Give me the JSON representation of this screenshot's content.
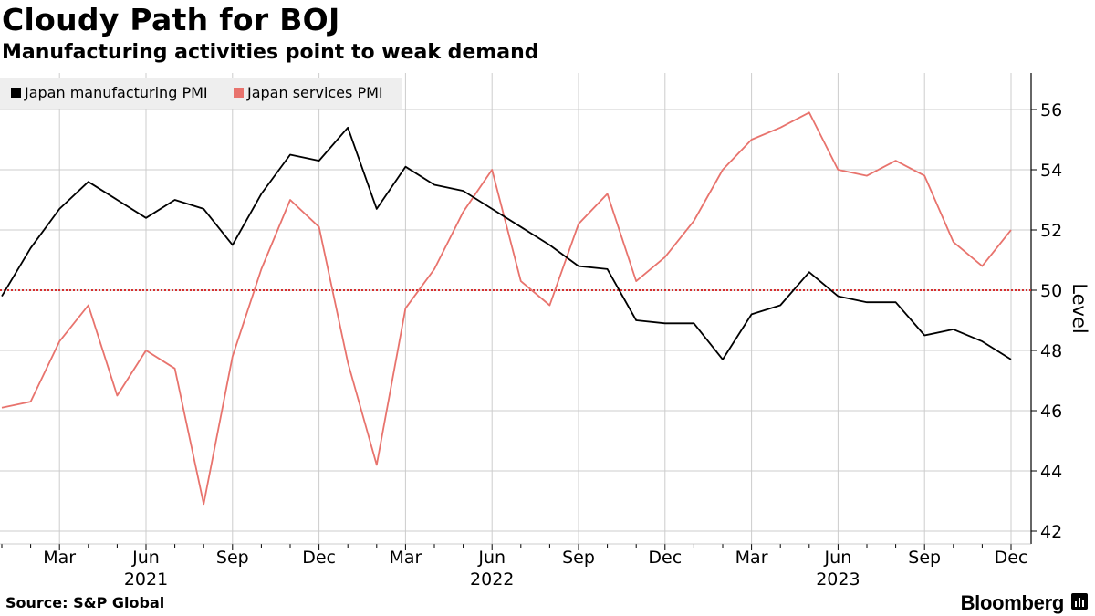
{
  "header": {
    "title": "Cloudy Path for BOJ",
    "subtitle": "Manufacturing activities point to weak demand"
  },
  "footer": {
    "source": "Source: S&P Global",
    "brand": "Bloomberg"
  },
  "colors": {
    "manufacturing": "#000000",
    "services": "#e8736d",
    "reference_line": "#d62f2f",
    "grid": "#cccccc",
    "legend_bg": "#eeeeee"
  },
  "chart_data": {
    "type": "line",
    "ylabel": "Level",
    "ylim": [
      42,
      57
    ],
    "yticks": [
      42,
      44,
      46,
      48,
      50,
      52,
      54,
      56
    ],
    "reference_line": 50,
    "grid": true,
    "legend_position": "top-left",
    "x": [
      "2021-01",
      "2021-02",
      "2021-03",
      "2021-04",
      "2021-05",
      "2021-06",
      "2021-07",
      "2021-08",
      "2021-09",
      "2021-10",
      "2021-11",
      "2021-12",
      "2022-01",
      "2022-02",
      "2022-03",
      "2022-04",
      "2022-05",
      "2022-06",
      "2022-07",
      "2022-08",
      "2022-09",
      "2022-10",
      "2022-11",
      "2022-12",
      "2023-01",
      "2023-02",
      "2023-03",
      "2023-04",
      "2023-05",
      "2023-06",
      "2023-07",
      "2023-08",
      "2023-09",
      "2023-10",
      "2023-11",
      "2023-12"
    ],
    "x_tick_labels": [
      {
        "month": "2021-03",
        "label": "Mar"
      },
      {
        "month": "2021-06",
        "label": "Jun",
        "year": "2021"
      },
      {
        "month": "2021-09",
        "label": "Sep"
      },
      {
        "month": "2021-12",
        "label": "Dec"
      },
      {
        "month": "2022-03",
        "label": "Mar"
      },
      {
        "month": "2022-06",
        "label": "Jun",
        "year": "2022"
      },
      {
        "month": "2022-09",
        "label": "Sep"
      },
      {
        "month": "2022-12",
        "label": "Dec"
      },
      {
        "month": "2023-03",
        "label": "Mar"
      },
      {
        "month": "2023-06",
        "label": "Jun",
        "year": "2023"
      },
      {
        "month": "2023-09",
        "label": "Sep"
      },
      {
        "month": "2023-12",
        "label": "Dec"
      }
    ],
    "series": [
      {
        "name": "Japan manufacturing PMI",
        "color": "#000000",
        "values": [
          49.8,
          51.4,
          52.7,
          53.6,
          53.0,
          52.4,
          53.0,
          52.7,
          51.5,
          53.2,
          54.5,
          54.3,
          55.4,
          52.7,
          54.1,
          53.5,
          53.3,
          52.7,
          52.1,
          51.5,
          50.8,
          50.7,
          49.0,
          48.9,
          48.9,
          47.7,
          49.2,
          49.5,
          50.6,
          49.8,
          49.6,
          49.6,
          48.5,
          48.7,
          48.3,
          47.7
        ]
      },
      {
        "name": "Japan services PMI",
        "color": "#e8736d",
        "values": [
          46.1,
          46.3,
          48.3,
          49.5,
          46.5,
          48.0,
          47.4,
          42.9,
          47.8,
          50.7,
          53.0,
          52.1,
          47.6,
          44.2,
          49.4,
          50.7,
          52.6,
          54.0,
          50.3,
          49.5,
          52.2,
          53.2,
          50.3,
          51.1,
          52.3,
          54.0,
          55.0,
          55.4,
          55.9,
          54.0,
          53.8,
          54.3,
          53.8,
          51.6,
          50.8,
          52.0
        ]
      }
    ]
  }
}
